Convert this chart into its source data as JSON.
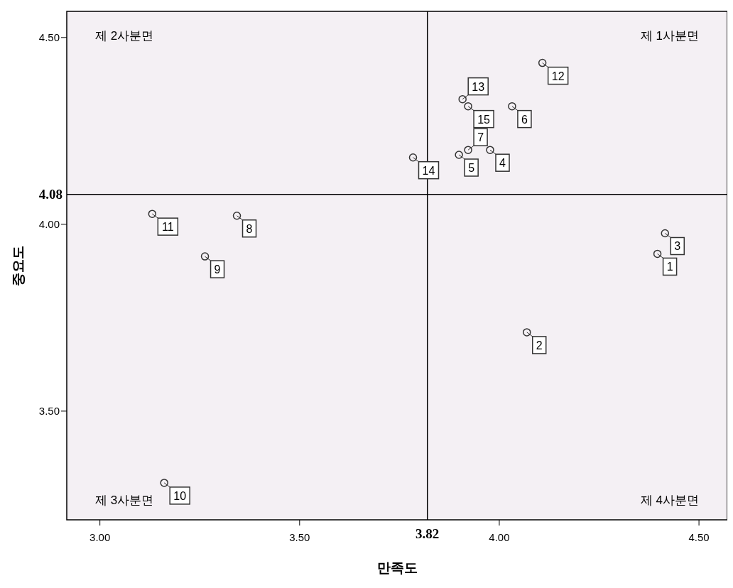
{
  "chart_data": {
    "type": "scatter",
    "xlabel": "만족도",
    "ylabel": "중요도",
    "x": [
      4.396,
      4.069,
      4.415,
      3.977,
      3.899,
      4.032,
      3.922,
      3.343,
      3.263,
      3.161,
      3.131,
      4.108,
      3.908,
      3.784,
      3.922
    ],
    "series": [
      {
        "color": "#333333",
        "values": [
          3.921,
          3.711,
          3.976,
          4.199,
          4.186,
          4.316,
          4.199,
          4.023,
          3.914,
          3.308,
          4.028,
          4.432,
          4.335,
          4.179,
          4.316
        ]
      }
    ],
    "annotations": [
      "제 1사분면",
      "제 2사분면",
      "제 3사분면",
      "제 4사분면",
      {
        "text": "1",
        "x": 4.396,
        "y": 3.921
      },
      {
        "text": "2",
        "x": 4.069,
        "y": 3.711
      },
      {
        "text": "3",
        "x": 4.415,
        "y": 3.976
      },
      {
        "text": "4",
        "x": 3.977,
        "y": 4.199
      },
      {
        "text": "5",
        "x": 3.899,
        "y": 4.186
      },
      {
        "text": "6",
        "x": 4.032,
        "y": 4.316
      },
      {
        "text": "7",
        "x": 3.922,
        "y": 4.199
      },
      {
        "text": "8",
        "x": 3.343,
        "y": 4.023
      },
      {
        "text": "9",
        "x": 3.263,
        "y": 3.914
      },
      {
        "text": "10",
        "x": 3.161,
        "y": 3.308
      },
      {
        "text": "11",
        "x": 3.131,
        "y": 4.028
      },
      {
        "text": "12",
        "x": 4.108,
        "y": 4.432
      },
      {
        "text": "13",
        "x": 3.908,
        "y": 4.335
      },
      {
        "text": "14",
        "x": 3.784,
        "y": 4.179
      },
      {
        "text": "15",
        "x": 3.922,
        "y": 4.316
      }
    ],
    "xlim": [
      2.917,
      4.571
    ],
    "ylim": [
      3.209,
      4.57
    ],
    "xticks": [
      {
        "value": 3,
        "label": "3.00"
      },
      {
        "value": 3.5,
        "label": "3.50"
      },
      {
        "value": 4,
        "label": "4.00"
      },
      {
        "value": 4.5,
        "label": "4.50"
      }
    ],
    "yticks": [
      {
        "value": 3.5,
        "label": "3.50"
      },
      {
        "value": 4,
        "label": "4.00"
      },
      {
        "value": 4.5,
        "label": "4.50"
      }
    ],
    "ref_lines": [
      {
        "axis": "x",
        "value": 3.82,
        "label": "3.82",
        "color": "#000000"
      },
      {
        "axis": "y",
        "value": 4.08,
        "label": "4.08",
        "color": "#000000"
      }
    ],
    "marker": "circle",
    "grid": false
  }
}
